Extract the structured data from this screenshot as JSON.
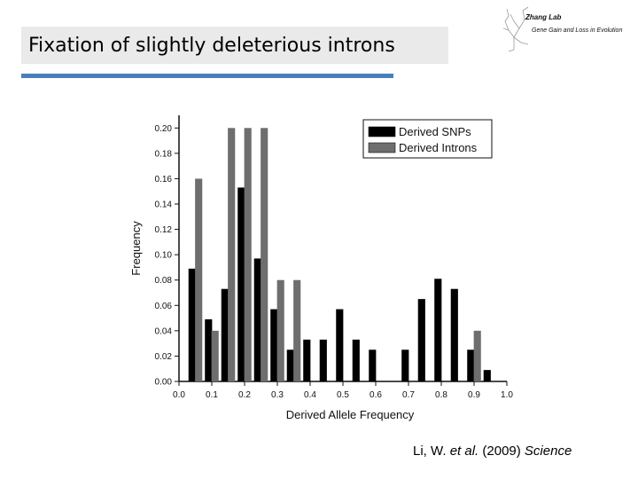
{
  "slide": {
    "title": "Fixation of slightly deleterious introns",
    "logo": {
      "name": "Zhang Lab",
      "subtitle": "Gene Gain and Loss in Evolution"
    },
    "citation": {
      "authors": "Li, W. ",
      "etal": "et al.",
      "year": " (2009) ",
      "journal": "Science"
    }
  },
  "colors": {
    "snp": "#000000",
    "intron": "#6e6e6e",
    "accent": "#4a7ebb",
    "title_bg": "#eaeaea"
  },
  "chart_data": {
    "type": "bar",
    "xlabel": "Derived Allele Frequency",
    "ylabel": "Frequency",
    "xlim": [
      0.0,
      1.0
    ],
    "ylim": [
      0.0,
      0.21
    ],
    "xticks": [
      "0.0",
      "0.1",
      "0.2",
      "0.3",
      "0.4",
      "0.5",
      "0.6",
      "0.7",
      "0.8",
      "0.9",
      "1.0"
    ],
    "yticks": [
      "0.00",
      "0.02",
      "0.04",
      "0.06",
      "0.08",
      "0.10",
      "0.12",
      "0.14",
      "0.16",
      "0.18",
      "0.20"
    ],
    "legend_position": "top-right",
    "series": [
      {
        "name": "Derived SNPs",
        "color": "#000000",
        "x": [
          0.04,
          0.09,
          0.14,
          0.19,
          0.24,
          0.29,
          0.34,
          0.39,
          0.44,
          0.49,
          0.54,
          0.59,
          0.69,
          0.74,
          0.79,
          0.84,
          0.89,
          0.94
        ],
        "values": [
          0.089,
          0.049,
          0.073,
          0.153,
          0.097,
          0.057,
          0.025,
          0.033,
          0.033,
          0.057,
          0.033,
          0.025,
          0.025,
          0.065,
          0.081,
          0.073,
          0.025,
          0.009
        ]
      },
      {
        "name": "Derived Introns",
        "color": "#6e6e6e",
        "x": [
          0.06,
          0.11,
          0.16,
          0.21,
          0.26,
          0.31,
          0.36,
          0.91
        ],
        "values": [
          0.16,
          0.04,
          0.2,
          0.2,
          0.2,
          0.08,
          0.08,
          0.04
        ]
      }
    ]
  }
}
